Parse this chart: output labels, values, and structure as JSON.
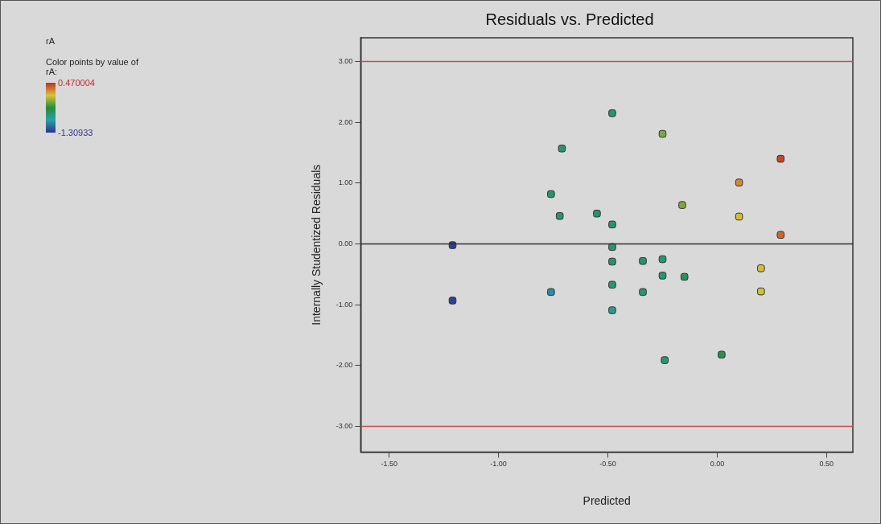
{
  "chart_data": {
    "type": "scatter",
    "title": "Residuals vs. Predicted",
    "xlabel": "Predicted",
    "ylabel": "Internally Studentized Residuals",
    "annotations": [
      "rA",
      "Color points by value of rA:"
    ],
    "x": [
      -1.21,
      -1.21,
      -0.71,
      -0.76,
      -0.72,
      -0.76,
      -0.48,
      -0.25,
      0.29,
      0.1,
      -0.16,
      0.1,
      -0.55,
      -0.48,
      0.29,
      -0.48,
      -0.48,
      -0.34,
      -0.25,
      -0.25,
      -0.15,
      0.2,
      0.2,
      -0.48,
      -0.34,
      -0.48,
      -0.24,
      0.02
    ],
    "values": [
      -0.02,
      -0.93,
      1.57,
      0.82,
      0.46,
      -0.79,
      2.15,
      1.81,
      1.4,
      1.01,
      0.64,
      0.45,
      0.5,
      0.32,
      0.15,
      -0.05,
      -0.29,
      -0.28,
      -0.25,
      -0.52,
      -0.54,
      -0.4,
      -0.78,
      -0.67,
      -0.79,
      -1.09,
      -1.91,
      -1.82
    ],
    "cvalues": [
      -1.25,
      -1.25,
      -0.6,
      -0.6,
      -0.6,
      -0.95,
      -0.6,
      -0.2,
      0.4,
      0.2,
      -0.2,
      0.05,
      -0.6,
      -0.6,
      0.3,
      -0.65,
      -0.6,
      -0.6,
      -0.65,
      -0.65,
      -0.55,
      0.05,
      0.0,
      -0.65,
      -0.65,
      -0.75,
      -0.65,
      -0.5
    ],
    "clim": [
      -1.30933,
      0.470004
    ],
    "cticks": [
      -1.30933,
      0.470004
    ],
    "xlim": [
      -1.63,
      0.62
    ],
    "ylim": [
      -3.42,
      3.39
    ],
    "xticks": [
      {
        "value": -1.5,
        "label": "-1.50"
      },
      {
        "value": -1,
        "label": "-1.00"
      },
      {
        "value": -0.5,
        "label": "-0.50"
      },
      {
        "value": 0,
        "label": "0.00"
      },
      {
        "value": 0.5,
        "label": "0.50"
      }
    ],
    "yticks": [
      {
        "value": -3,
        "label": "-3.00"
      },
      {
        "value": -2,
        "label": "-2.00"
      },
      {
        "value": -1,
        "label": "-1.00"
      },
      {
        "value": 0,
        "label": "0.00"
      },
      {
        "value": 1,
        "label": "1.00"
      },
      {
        "value": 2,
        "label": "2.00"
      },
      {
        "value": 3,
        "label": "3.00"
      }
    ],
    "ref_lines": [
      {
        "axis": "y",
        "value": 3,
        "color": "#c05050"
      },
      {
        "axis": "y",
        "value": 0,
        "color": "#303030"
      },
      {
        "axis": "y",
        "value": -3,
        "color": "#c05050"
      }
    ],
    "marker": "square",
    "grid": false,
    "legend": false
  }
}
